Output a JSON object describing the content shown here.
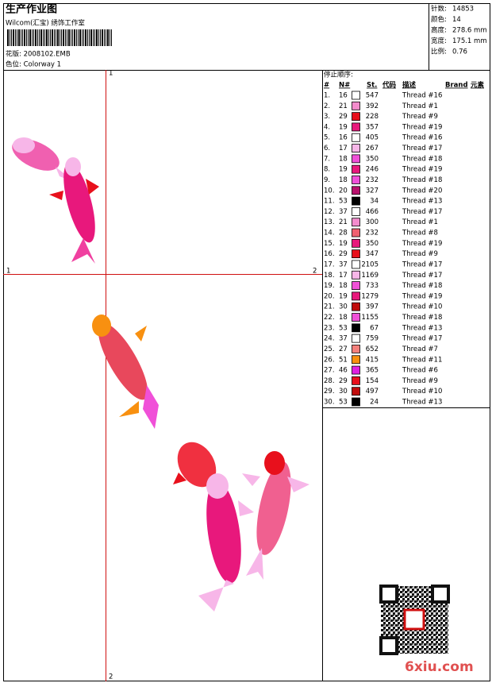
{
  "header": {
    "title": "生产作业图",
    "company": "Wilcom(汇宝) 绣饰工作室",
    "design": "花版: 2008102.EMB",
    "colorway": "色位: Colorway 1"
  },
  "info": [
    {
      "label": "针数:",
      "value": "14853"
    },
    {
      "label": "颜色:",
      "value": "14"
    },
    {
      "label": "高度:",
      "value": "278.6 mm"
    },
    {
      "label": "宽度:",
      "value": "175.1 mm"
    },
    {
      "label": "比例:",
      "value": "0.76"
    }
  ],
  "stop_list": {
    "title": "停止顺序:",
    "columns": [
      "#",
      "N#",
      "St.",
      "代码",
      "描述",
      "Brand",
      "元素"
    ],
    "rows": [
      {
        "num": "1.",
        "needle": "16",
        "color": "#ffffff",
        "st": "547",
        "desc": "Thread #16"
      },
      {
        "num": "2.",
        "needle": "21",
        "color": "#f48ccd",
        "st": "392",
        "desc": "Thread #1"
      },
      {
        "num": "3.",
        "needle": "29",
        "color": "#e8101c",
        "st": "228",
        "desc": "Thread #9"
      },
      {
        "num": "4.",
        "needle": "19",
        "color": "#e8187c",
        "st": "357",
        "desc": "Thread #19"
      },
      {
        "num": "5.",
        "needle": "16",
        "color": "#ffffff",
        "st": "405",
        "desc": "Thread #16"
      },
      {
        "num": "6.",
        "needle": "17",
        "color": "#f7b6e8",
        "st": "267",
        "desc": "Thread #17"
      },
      {
        "num": "7.",
        "needle": "18",
        "color": "#f050d8",
        "st": "350",
        "desc": "Thread #18"
      },
      {
        "num": "8.",
        "needle": "19",
        "color": "#e8187c",
        "st": "246",
        "desc": "Thread #19"
      },
      {
        "num": "9.",
        "needle": "18",
        "color": "#f050d8",
        "st": "232",
        "desc": "Thread #18"
      },
      {
        "num": "10.",
        "needle": "20",
        "color": "#b8106c",
        "st": "327",
        "desc": "Thread #20"
      },
      {
        "num": "11.",
        "needle": "53",
        "color": "#000000",
        "st": "34",
        "desc": "Thread #13"
      },
      {
        "num": "12.",
        "needle": "37",
        "color": "#ffffff",
        "st": "466",
        "desc": "Thread #17"
      },
      {
        "num": "13.",
        "needle": "21",
        "color": "#f48ccd",
        "st": "300",
        "desc": "Thread #1"
      },
      {
        "num": "14.",
        "needle": "28",
        "color": "#f06070",
        "st": "232",
        "desc": "Thread #8"
      },
      {
        "num": "15.",
        "needle": "19",
        "color": "#e8187c",
        "st": "350",
        "desc": "Thread #19"
      },
      {
        "num": "16.",
        "needle": "29",
        "color": "#e8101c",
        "st": "347",
        "desc": "Thread #9"
      },
      {
        "num": "17.",
        "needle": "37",
        "color": "#ffffff",
        "st": "2105",
        "desc": "Thread #17"
      },
      {
        "num": "18.",
        "needle": "17",
        "color": "#f7b6e8",
        "st": "1169",
        "desc": "Thread #17"
      },
      {
        "num": "19.",
        "needle": "18",
        "color": "#f050d8",
        "st": "733",
        "desc": "Thread #18"
      },
      {
        "num": "20.",
        "needle": "19",
        "color": "#e8187c",
        "st": "1279",
        "desc": "Thread #19"
      },
      {
        "num": "21.",
        "needle": "30",
        "color": "#c00c0c",
        "st": "397",
        "desc": "Thread #10"
      },
      {
        "num": "22.",
        "needle": "18",
        "color": "#f050d8",
        "st": "1155",
        "desc": "Thread #18"
      },
      {
        "num": "23.",
        "needle": "53",
        "color": "#000000",
        "st": "67",
        "desc": "Thread #13"
      },
      {
        "num": "24.",
        "needle": "37",
        "color": "#ffffff",
        "st": "759",
        "desc": "Thread #17"
      },
      {
        "num": "25.",
        "needle": "27",
        "color": "#f4807c",
        "st": "652",
        "desc": "Thread #7"
      },
      {
        "num": "26.",
        "needle": "51",
        "color": "#f89010",
        "st": "415",
        "desc": "Thread #11"
      },
      {
        "num": "27.",
        "needle": "46",
        "color": "#e020e0",
        "st": "365",
        "desc": "Thread #6"
      },
      {
        "num": "28.",
        "needle": "29",
        "color": "#e8101c",
        "st": "154",
        "desc": "Thread #9"
      },
      {
        "num": "29.",
        "needle": "30",
        "color": "#c00c0c",
        "st": "497",
        "desc": "Thread #10"
      },
      {
        "num": "30.",
        "needle": "53",
        "color": "#000000",
        "st": "24",
        "desc": "Thread #13"
      }
    ]
  },
  "canvas": {
    "marks": [
      "1",
      "1",
      "2",
      "2"
    ]
  },
  "watermark": "6xiu.com"
}
